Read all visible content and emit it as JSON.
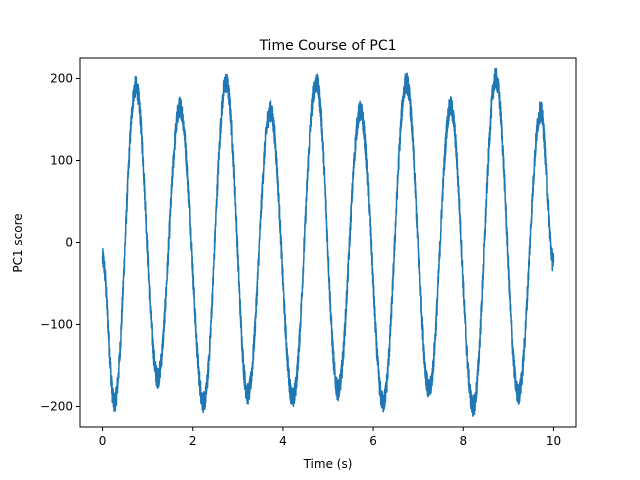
{
  "chart_data": {
    "type": "line",
    "title": "Time Course of PC1",
    "xlabel": "Time (s)",
    "ylabel": "PC1 score",
    "xlim": [
      -0.5,
      10.5
    ],
    "ylim": [
      -225,
      225
    ],
    "xticks": [
      0,
      2,
      4,
      6,
      8,
      10
    ],
    "yticks": [
      -200,
      -100,
      0,
      100,
      200
    ],
    "xtick_labels": [
      "0",
      "2",
      "4",
      "6",
      "8",
      "10"
    ],
    "ytick_labels": [
      "−200",
      "−100",
      "0",
      "100",
      "200"
    ],
    "grid": false,
    "legend": "none",
    "series": [
      {
        "color": "#1f77b4",
        "x": [
          0.0,
          0.26,
          0.74,
          1.22,
          1.72,
          2.24,
          2.74,
          3.22,
          3.72,
          4.22,
          4.74,
          5.22,
          5.72,
          6.22,
          6.74,
          7.24,
          7.72,
          8.22,
          8.72,
          9.22,
          9.72,
          10.0
        ],
        "y": [
          -20,
          -195,
          190,
          -165,
          165,
          -195,
          195,
          -185,
          160,
          -190,
          195,
          -180,
          160,
          -195,
          195,
          -180,
          165,
          -200,
          200,
          -185,
          160,
          -25
        ]
      }
    ]
  }
}
